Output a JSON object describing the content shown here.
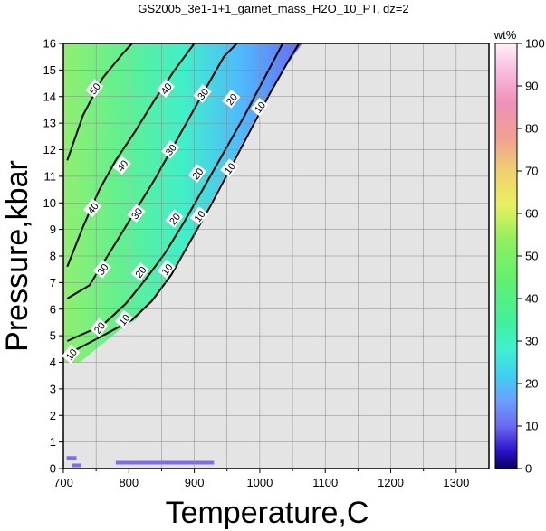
{
  "chart_data": {
    "type": "contour",
    "title": "GS2005_3e1-1+1_garnet_mass_H2O_10_PT, dz=2",
    "xlabel": "Temperature,C",
    "ylabel": "Pressure,kbar",
    "xlim": [
      700,
      1350
    ],
    "ylim": [
      0,
      16
    ],
    "x_ticks": [
      "700",
      "800",
      "900",
      "1000",
      "1100",
      "1200",
      "1300"
    ],
    "y_ticks": [
      "0",
      "1",
      "2",
      "3",
      "4",
      "5",
      "6",
      "7",
      "8",
      "9",
      "10",
      "11",
      "12",
      "13",
      "14",
      "15",
      "16"
    ],
    "grid": true,
    "grid_spacing": {
      "x": 50,
      "y": 1
    },
    "colorbar": {
      "label": "wt%",
      "range": [
        0,
        100
      ],
      "ticks": [
        "0",
        "10",
        "20",
        "30",
        "40",
        "50",
        "60",
        "70",
        "80",
        "90",
        "100"
      ]
    },
    "colors": {
      "no_data": "#e4e4e4",
      "low_band": "#7c6cf0"
    },
    "filled_region_boundary": [
      [
        706,
        4.0
      ],
      [
        725,
        4.0
      ],
      [
        760,
        4.7
      ],
      [
        785,
        5.2
      ],
      [
        810,
        5.6
      ],
      [
        850,
        6.8
      ],
      [
        880,
        8.0
      ],
      [
        910,
        9.3
      ],
      [
        940,
        10.7
      ],
      [
        970,
        12.1
      ],
      [
        1000,
        13.5
      ],
      [
        1030,
        14.8
      ],
      [
        1065,
        16.0
      ],
      [
        700,
        16.0
      ],
      [
        700,
        4.0
      ]
    ],
    "contours": [
      {
        "level": 10,
        "points": [
          [
            706,
            4.3
          ],
          [
            760,
            5.0
          ],
          [
            805,
            5.6
          ],
          [
            835,
            6.3
          ],
          [
            865,
            7.3
          ],
          [
            895,
            8.6
          ],
          [
            925,
            9.9
          ],
          [
            955,
            11.3
          ],
          [
            985,
            12.7
          ],
          [
            1015,
            14.1
          ],
          [
            1045,
            15.4
          ],
          [
            1060,
            16.0
          ]
        ],
        "label_points": [
          [
            712,
            4.3
          ],
          [
            793,
            5.6
          ],
          [
            858,
            7.5
          ],
          [
            908,
            9.5
          ],
          [
            954,
            11.3
          ],
          [
            1000,
            13.6
          ]
        ]
      },
      {
        "level": 20,
        "points": [
          [
            706,
            4.8
          ],
          [
            760,
            5.4
          ],
          [
            795,
            6.2
          ],
          [
            825,
            7.1
          ],
          [
            855,
            8.1
          ],
          [
            885,
            9.3
          ],
          [
            915,
            10.6
          ],
          [
            945,
            11.9
          ],
          [
            975,
            13.2
          ],
          [
            1005,
            14.6
          ],
          [
            1035,
            16.0
          ]
        ],
        "label_points": [
          [
            755,
            5.3
          ],
          [
            818,
            7.4
          ],
          [
            870,
            9.4
          ],
          [
            905,
            11.1
          ],
          [
            957,
            13.9
          ]
        ]
      },
      {
        "level": 30,
        "points": [
          [
            706,
            6.4
          ],
          [
            740,
            6.9
          ],
          [
            765,
            7.9
          ],
          [
            790,
            8.9
          ],
          [
            815,
            9.9
          ],
          [
            840,
            10.9
          ],
          [
            865,
            12.0
          ],
          [
            890,
            13.1
          ],
          [
            915,
            14.2
          ],
          [
            945,
            15.5
          ],
          [
            965,
            16.0
          ]
        ],
        "label_points": [
          [
            760,
            7.5
          ],
          [
            812,
            9.6
          ],
          [
            864,
            12.0
          ],
          [
            913,
            14.1
          ]
        ]
      },
      {
        "level": 40,
        "points": [
          [
            706,
            7.6
          ],
          [
            730,
            9.1
          ],
          [
            755,
            10.5
          ],
          [
            780,
            11.6
          ],
          [
            810,
            12.7
          ],
          [
            840,
            13.9
          ],
          [
            870,
            15.0
          ],
          [
            900,
            16.0
          ]
        ],
        "label_points": [
          [
            745,
            9.8
          ],
          [
            790,
            11.4
          ],
          [
            857,
            14.3
          ]
        ]
      },
      {
        "level": 50,
        "points": [
          [
            706,
            11.6
          ],
          [
            730,
            13.3
          ],
          [
            760,
            14.7
          ],
          [
            790,
            15.6
          ],
          [
            805,
            16.0
          ]
        ],
        "label_points": [
          [
            748,
            14.3
          ]
        ]
      }
    ],
    "low_band_segments": [
      {
        "x": [
          705,
          720
        ],
        "y": [
          0.4,
          0.4
        ]
      },
      {
        "x": [
          713,
          727
        ],
        "y": [
          0.12,
          0.12
        ]
      },
      {
        "x": [
          780,
          930
        ],
        "y": [
          0.22,
          0.22
        ]
      }
    ]
  }
}
